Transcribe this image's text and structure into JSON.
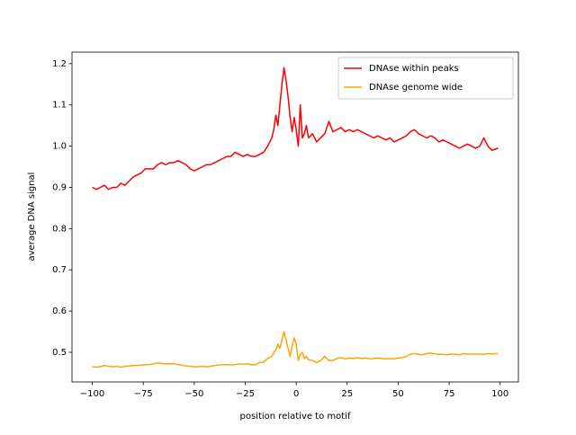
{
  "chart_data": {
    "type": "line",
    "xlabel": "position relative to motif",
    "ylabel": "average DNA signal",
    "x": [
      -100,
      -98,
      -96,
      -94,
      -92,
      -90,
      -88,
      -86,
      -84,
      -82,
      -80,
      -78,
      -76,
      -74,
      -72,
      -70,
      -68,
      -66,
      -64,
      -62,
      -60,
      -58,
      -56,
      -54,
      -52,
      -50,
      -48,
      -46,
      -44,
      -42,
      -40,
      -38,
      -36,
      -34,
      -32,
      -30,
      -28,
      -26,
      -24,
      -22,
      -20,
      -18,
      -16,
      -14,
      -12,
      -11,
      -10,
      -9,
      -8,
      -7,
      -6,
      -5,
      -4,
      -3,
      -2,
      -1,
      0,
      1,
      2,
      3,
      4,
      5,
      6,
      8,
      10,
      12,
      14,
      16,
      18,
      20,
      22,
      24,
      26,
      28,
      30,
      32,
      34,
      36,
      38,
      40,
      42,
      44,
      46,
      48,
      50,
      52,
      54,
      56,
      58,
      60,
      62,
      64,
      66,
      68,
      70,
      72,
      74,
      76,
      78,
      80,
      82,
      84,
      86,
      88,
      90,
      92,
      94,
      96,
      99
    ],
    "series": [
      {
        "name": "DNAse within peaks",
        "color": "#ff0000",
        "values": [
          0.9,
          0.895,
          0.9,
          0.905,
          0.895,
          0.9,
          0.9,
          0.91,
          0.905,
          0.915,
          0.925,
          0.93,
          0.935,
          0.945,
          0.945,
          0.945,
          0.955,
          0.96,
          0.955,
          0.96,
          0.96,
          0.965,
          0.96,
          0.955,
          0.945,
          0.94,
          0.945,
          0.95,
          0.955,
          0.955,
          0.96,
          0.965,
          0.97,
          0.975,
          0.975,
          0.985,
          0.98,
          0.975,
          0.98,
          0.975,
          0.975,
          0.98,
          0.985,
          1.0,
          1.02,
          1.04,
          1.075,
          1.05,
          1.1,
          1.15,
          1.19,
          1.16,
          1.12,
          1.07,
          1.035,
          1.07,
          1.04,
          1.0,
          1.1,
          1.02,
          1.03,
          1.05,
          1.02,
          1.03,
          1.01,
          1.02,
          1.03,
          1.06,
          1.035,
          1.04,
          1.045,
          1.035,
          1.04,
          1.035,
          1.04,
          1.035,
          1.03,
          1.025,
          1.02,
          1.025,
          1.02,
          1.015,
          1.02,
          1.01,
          1.015,
          1.02,
          1.025,
          1.035,
          1.04,
          1.03,
          1.025,
          1.02,
          1.025,
          1.02,
          1.01,
          1.015,
          1.01,
          1.005,
          1.0,
          0.995,
          1.0,
          1.005,
          1.0,
          0.995,
          1.0,
          1.02,
          1.0,
          0.99,
          0.995
        ]
      },
      {
        "name": "DNAse genome wide",
        "color": "#ffa500",
        "values": [
          0.465,
          0.464,
          0.465,
          0.468,
          0.466,
          0.465,
          0.466,
          0.464,
          0.466,
          0.467,
          0.468,
          0.468,
          0.469,
          0.47,
          0.47,
          0.472,
          0.474,
          0.473,
          0.472,
          0.472,
          0.472,
          0.47,
          0.469,
          0.467,
          0.466,
          0.465,
          0.465,
          0.466,
          0.465,
          0.466,
          0.468,
          0.469,
          0.47,
          0.47,
          0.469,
          0.47,
          0.472,
          0.471,
          0.472,
          0.47,
          0.47,
          0.475,
          0.476,
          0.485,
          0.49,
          0.5,
          0.505,
          0.52,
          0.51,
          0.53,
          0.55,
          0.53,
          0.51,
          0.49,
          0.515,
          0.535,
          0.52,
          0.48,
          0.495,
          0.5,
          0.485,
          0.49,
          0.482,
          0.48,
          0.475,
          0.48,
          0.49,
          0.48,
          0.48,
          0.485,
          0.487,
          0.484,
          0.486,
          0.485,
          0.487,
          0.485,
          0.486,
          0.484,
          0.485,
          0.486,
          0.485,
          0.484,
          0.485,
          0.484,
          0.486,
          0.487,
          0.49,
          0.495,
          0.497,
          0.495,
          0.494,
          0.497,
          0.498,
          0.496,
          0.495,
          0.495,
          0.494,
          0.496,
          0.495,
          0.494,
          0.497,
          0.495,
          0.496,
          0.495,
          0.496,
          0.495,
          0.497,
          0.496,
          0.497
        ]
      }
    ],
    "xlim": [
      -109.95,
      108.95
    ],
    "ylim": [
      0.428,
      1.228
    ],
    "xticks": [
      {
        "value": -100,
        "label": "−100"
      },
      {
        "value": -75,
        "label": "−75"
      },
      {
        "value": -50,
        "label": "−50"
      },
      {
        "value": -25,
        "label": "−25"
      },
      0,
      25,
      50,
      75,
      100
    ],
    "yticks": [
      0.5,
      0.6,
      0.7,
      0.8,
      0.9,
      {
        "value": 1.0,
        "label": "1.0"
      },
      1.1,
      1.2
    ],
    "legend": "upper right"
  }
}
